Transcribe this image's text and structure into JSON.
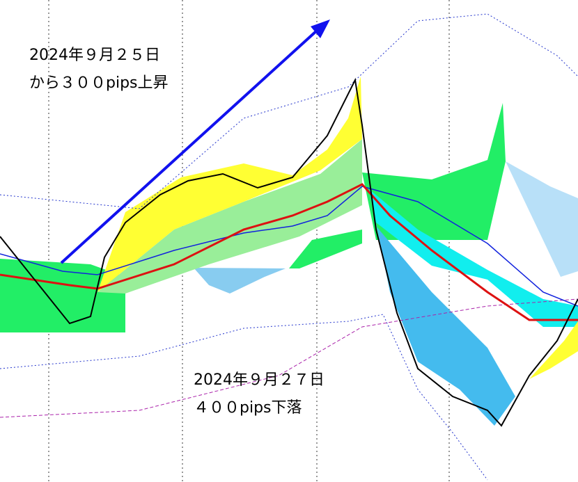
{
  "annotations": [
    {
      "lines": [
        "2024年９月２５日",
        "から３００pips上昇"
      ]
    },
    {
      "lines": [
        "2024年９月２７日",
        "４００pips下落"
      ]
    }
  ]
}
